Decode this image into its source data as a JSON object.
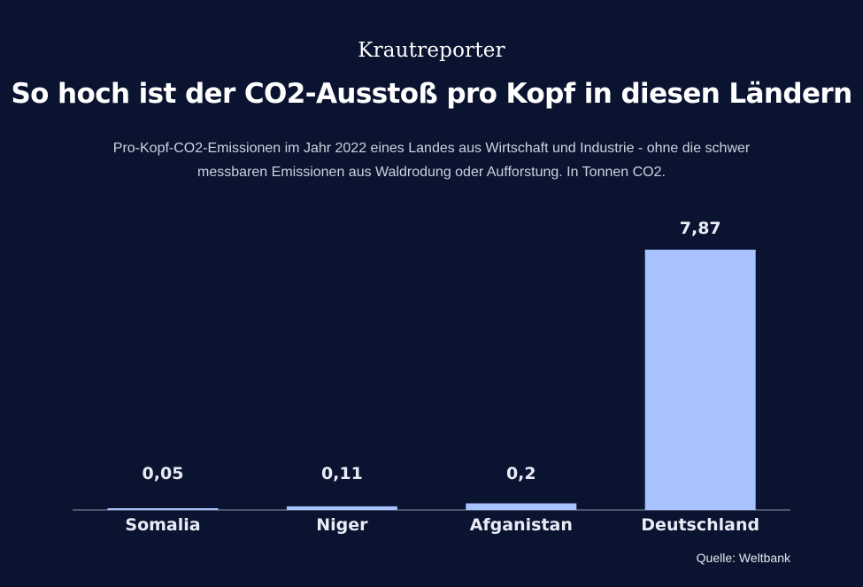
{
  "header": {
    "logo_text": "Krautreporter"
  },
  "footer": {
    "source": "Quelle: Weltbank"
  },
  "colors": {
    "background": "#0a1330",
    "bar": "#a8c1ff",
    "text": "#ffffff"
  },
  "chart_data": {
    "type": "bar",
    "title": "So hoch ist der CO2-Ausstoß pro Kopf in diesen Ländern",
    "subtitle": "Pro-Kopf-CO2-Emissionen im Jahr 2022 eines Landes aus Wirtschaft und Industrie - ohne die schwer messbaren Emissionen aus Waldrodung oder Aufforstung. In Tonnen CO2.",
    "categories": [
      "Somalia",
      "Niger",
      "Afganistan",
      "Deutschland"
    ],
    "values": [
      0.05,
      0.11,
      0.2,
      7.87
    ],
    "value_labels": [
      "0,05",
      "0,11",
      "0,2",
      "7,87"
    ],
    "xlabel": "",
    "ylabel": "",
    "ylim": [
      0,
      7.87
    ],
    "grid": false,
    "legend": "none"
  }
}
